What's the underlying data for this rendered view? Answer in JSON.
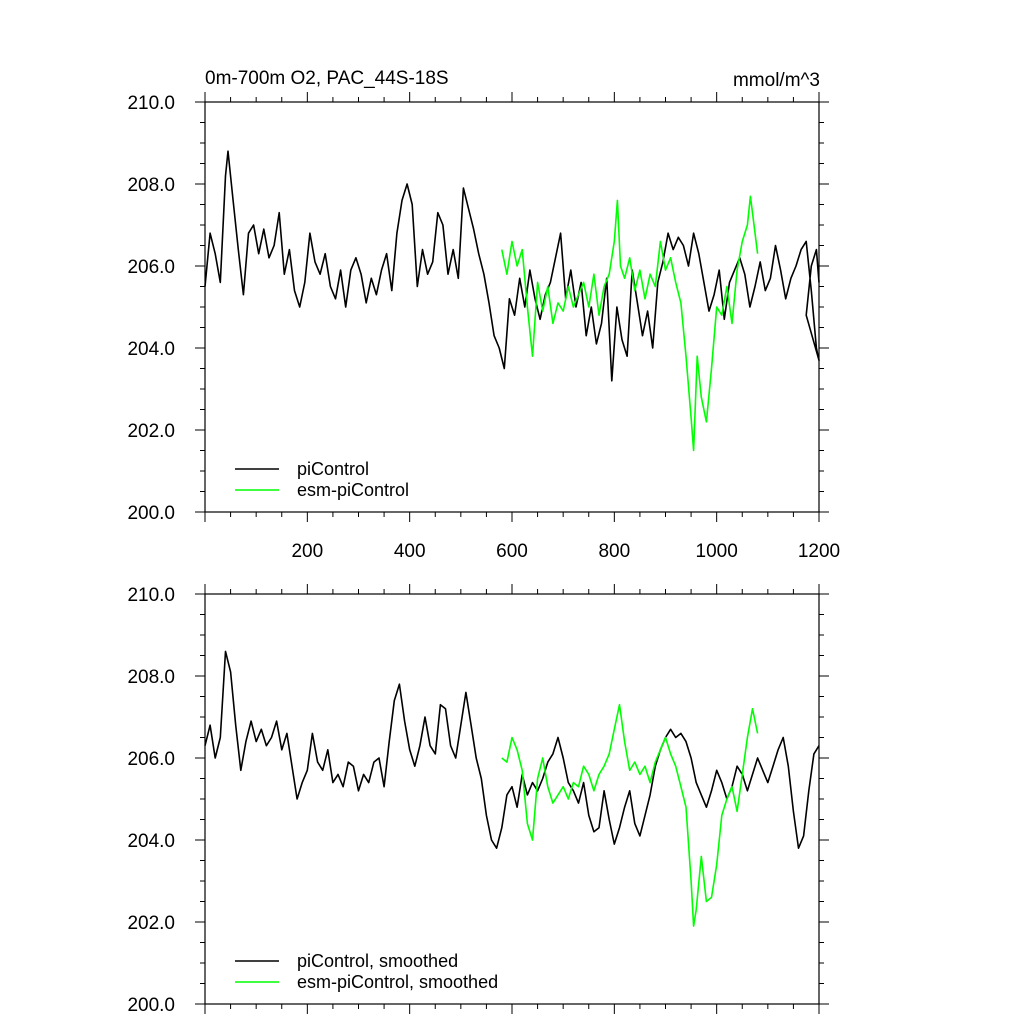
{
  "chart_data": [
    {
      "type": "line",
      "title": "0m-700m O2, PAC_44S-18S",
      "units": "mmol/m^3",
      "xlim": [
        0,
        1200
      ],
      "ylim": [
        200,
        210
      ],
      "x_ticks": [
        200,
        400,
        600,
        800,
        1000,
        1200
      ],
      "y_ticks": [
        200,
        202,
        204,
        206,
        208,
        210
      ],
      "x_tick_labels": [
        "200",
        "400",
        "600",
        "800",
        "1000",
        "1200"
      ],
      "y_tick_labels": [
        "200.0",
        "202.0",
        "204.0",
        "206.0",
        "208.0",
        "210.0"
      ],
      "legend_position": "bottom-left",
      "series": [
        {
          "name": "piControl",
          "color": "#000000",
          "x": [
            0,
            10,
            20,
            30,
            40,
            45,
            55,
            65,
            75,
            85,
            95,
            105,
            115,
            125,
            135,
            145,
            155,
            165,
            175,
            185,
            195,
            205,
            215,
            225,
            235,
            245,
            255,
            265,
            275,
            285,
            295,
            305,
            315,
            325,
            335,
            345,
            355,
            365,
            375,
            385,
            395,
            405,
            415,
            425,
            435,
            445,
            455,
            465,
            475,
            485,
            495,
            505,
            515,
            525,
            535,
            545,
            555,
            565,
            575,
            585,
            595,
            605,
            615,
            625,
            635,
            645,
            655,
            665,
            675,
            685,
            695,
            705,
            715,
            725,
            735,
            745,
            755,
            765,
            775,
            785,
            795,
            805,
            815,
            825,
            835,
            845,
            855,
            865,
            875,
            885,
            895,
            905,
            915,
            925,
            935,
            945,
            955,
            965,
            975,
            985,
            995,
            1005,
            1015,
            1025,
            1035,
            1045,
            1055,
            1065,
            1075,
            1085,
            1095,
            1105,
            1115,
            1125,
            1135,
            1145,
            1155,
            1165,
            1175,
            1185,
            1195,
            1200
          ],
          "y": [
            205.5,
            206.8,
            206.3,
            205.6,
            208.2,
            208.8,
            207.6,
            206.4,
            205.3,
            206.8,
            207.0,
            206.3,
            206.9,
            206.2,
            206.5,
            207.3,
            205.8,
            206.4,
            205.4,
            205.0,
            205.6,
            206.8,
            206.1,
            205.8,
            206.3,
            205.5,
            205.2,
            205.9,
            205.0,
            205.9,
            206.2,
            205.8,
            205.1,
            205.7,
            205.3,
            205.9,
            206.3,
            205.4,
            206.8,
            207.6,
            208.0,
            207.5,
            205.5,
            206.4,
            205.8,
            206.1,
            207.3,
            207.0,
            205.8,
            206.4,
            205.7,
            207.9,
            207.4,
            206.9,
            206.3,
            205.8,
            205.1,
            204.3,
            204.0,
            203.5,
            205.2,
            204.8,
            205.7,
            205.0,
            205.9,
            205.2,
            204.7,
            205.3,
            205.6,
            206.2,
            206.8,
            205.2,
            205.9,
            205.0,
            205.6,
            204.3,
            205.0,
            204.1,
            204.6,
            205.7,
            203.2,
            205.0,
            204.2,
            203.8,
            205.9,
            205.1,
            204.3,
            204.9,
            204.0,
            205.6,
            206.1,
            206.8,
            206.4,
            206.7,
            206.5,
            206.0,
            206.8,
            206.3,
            205.6,
            204.9,
            205.3,
            205.9,
            204.7,
            205.6,
            205.9,
            206.2,
            205.8,
            205.0,
            205.5,
            206.1,
            205.4,
            205.7,
            206.5,
            205.9,
            205.2,
            205.7,
            206.0,
            206.4,
            206.6,
            205.4,
            204.0,
            203.7
          ],
          "x_tail": [
            1165,
            1175,
            1185,
            1195,
            1200
          ],
          "y_tail": [
            203.7,
            204.8,
            206.0,
            206.4,
            205.6
          ]
        },
        {
          "name": "esm-piControl",
          "color": "#00ff00",
          "x": [
            580,
            590,
            600,
            610,
            620,
            630,
            640,
            650,
            660,
            670,
            680,
            690,
            700,
            710,
            720,
            730,
            740,
            750,
            760,
            770,
            780,
            790,
            800,
            806,
            812,
            820,
            830,
            840,
            850,
            860,
            870,
            880,
            890,
            900,
            910,
            920,
            930,
            940,
            950,
            955,
            962,
            970,
            980,
            990,
            1000,
            1010,
            1020,
            1030,
            1040,
            1050,
            1060,
            1066,
            1072,
            1080
          ],
          "y": [
            206.4,
            205.8,
            206.6,
            206.0,
            206.4,
            205.0,
            203.8,
            205.6,
            204.9,
            205.5,
            204.6,
            205.1,
            204.9,
            205.5,
            205.0,
            205.3,
            205.6,
            205.0,
            205.8,
            204.8,
            205.5,
            205.8,
            206.6,
            207.6,
            206.0,
            205.7,
            206.2,
            205.4,
            205.9,
            205.2,
            205.8,
            205.5,
            206.6,
            205.9,
            206.2,
            205.6,
            205.1,
            203.8,
            202.3,
            201.5,
            203.8,
            202.8,
            202.2,
            203.5,
            205.0,
            204.8,
            205.5,
            204.6,
            205.9,
            206.6,
            207.0,
            207.7,
            207.1,
            206.3
          ]
        }
      ],
      "legend": [
        "piControl",
        "esm-piControl"
      ]
    },
    {
      "type": "line",
      "title": "",
      "xlim": [
        0,
        1200
      ],
      "ylim": [
        200,
        210
      ],
      "y_ticks": [
        200,
        202,
        204,
        206,
        208,
        210
      ],
      "y_tick_labels": [
        "200.0",
        "202.0",
        "204.0",
        "206.0",
        "208.0",
        "210.0"
      ],
      "legend_position": "bottom-left",
      "series": [
        {
          "name": "piControl, smoothed",
          "color": "#000000",
          "x": [
            0,
            10,
            20,
            30,
            40,
            50,
            60,
            70,
            80,
            90,
            100,
            110,
            120,
            130,
            140,
            150,
            160,
            170,
            180,
            190,
            200,
            210,
            220,
            230,
            240,
            250,
            260,
            270,
            280,
            290,
            300,
            310,
            320,
            330,
            340,
            350,
            360,
            370,
            380,
            390,
            400,
            410,
            420,
            430,
            440,
            450,
            460,
            470,
            480,
            490,
            500,
            510,
            520,
            530,
            540,
            550,
            560,
            570,
            580,
            590,
            600,
            610,
            620,
            630,
            640,
            650,
            660,
            670,
            680,
            690,
            700,
            710,
            720,
            730,
            740,
            750,
            760,
            770,
            780,
            790,
            800,
            810,
            820,
            830,
            840,
            850,
            860,
            870,
            880,
            890,
            900,
            910,
            920,
            930,
            940,
            950,
            960,
            970,
            980,
            990,
            1000,
            1010,
            1020,
            1030,
            1040,
            1050,
            1060,
            1070,
            1080,
            1090,
            1100,
            1110,
            1120,
            1130,
            1140,
            1150,
            1160,
            1170,
            1180,
            1190,
            1200
          ],
          "y": [
            206.3,
            206.8,
            206.0,
            206.5,
            208.6,
            208.1,
            206.8,
            205.7,
            206.4,
            206.9,
            206.4,
            206.7,
            206.3,
            206.5,
            206.9,
            206.2,
            206.6,
            205.8,
            205.0,
            205.4,
            205.7,
            206.6,
            205.9,
            205.7,
            206.2,
            205.4,
            205.6,
            205.3,
            205.9,
            205.8,
            205.2,
            205.6,
            205.4,
            205.9,
            206.0,
            205.3,
            206.4,
            207.4,
            207.8,
            206.9,
            206.2,
            205.8,
            206.3,
            207.0,
            206.3,
            206.1,
            207.3,
            207.2,
            206.3,
            206.0,
            206.8,
            207.6,
            206.8,
            206.0,
            205.5,
            204.6,
            204.0,
            203.8,
            204.3,
            205.1,
            205.3,
            204.8,
            205.6,
            205.1,
            205.4,
            205.2,
            205.5,
            205.9,
            206.1,
            206.5,
            206.0,
            205.4,
            205.2,
            204.9,
            205.4,
            204.6,
            204.2,
            204.3,
            205.2,
            204.5,
            203.9,
            204.3,
            204.8,
            205.2,
            204.4,
            204.1,
            204.6,
            205.1,
            205.8,
            206.2,
            206.5,
            206.7,
            206.5,
            206.6,
            206.4,
            206.0,
            205.4,
            205.1,
            204.8,
            205.2,
            205.7,
            205.4,
            205.0,
            205.3,
            205.8,
            205.6,
            205.2,
            205.6,
            206.0,
            205.7,
            205.4,
            205.8,
            206.2,
            206.5,
            205.8,
            204.7,
            203.8,
            204.1,
            205.2,
            206.1,
            206.3
          ]
        },
        {
          "name": "esm-piControl, smoothed",
          "color": "#00ff00",
          "x": [
            580,
            590,
            600,
            610,
            620,
            630,
            640,
            650,
            660,
            670,
            680,
            690,
            700,
            710,
            720,
            730,
            740,
            750,
            760,
            770,
            780,
            790,
            800,
            810,
            820,
            830,
            840,
            850,
            860,
            870,
            880,
            890,
            900,
            910,
            920,
            930,
            940,
            950,
            955,
            960,
            970,
            980,
            990,
            1000,
            1010,
            1020,
            1030,
            1040,
            1050,
            1060,
            1070,
            1080
          ],
          "y": [
            206.0,
            205.9,
            206.5,
            206.2,
            205.7,
            204.4,
            204.0,
            205.5,
            206.0,
            205.3,
            204.9,
            205.1,
            205.3,
            205.0,
            205.4,
            205.3,
            205.8,
            205.6,
            205.2,
            205.6,
            205.8,
            206.1,
            206.7,
            207.3,
            206.4,
            205.7,
            205.9,
            205.6,
            205.8,
            205.4,
            205.9,
            206.2,
            206.5,
            206.1,
            205.8,
            205.3,
            204.8,
            203.0,
            201.9,
            202.3,
            203.6,
            202.5,
            202.6,
            203.4,
            204.6,
            205.0,
            205.3,
            204.7,
            205.6,
            206.5,
            207.2,
            206.6
          ]
        }
      ],
      "legend": [
        "piControl, smoothed",
        "esm-piControl, smoothed"
      ]
    }
  ]
}
